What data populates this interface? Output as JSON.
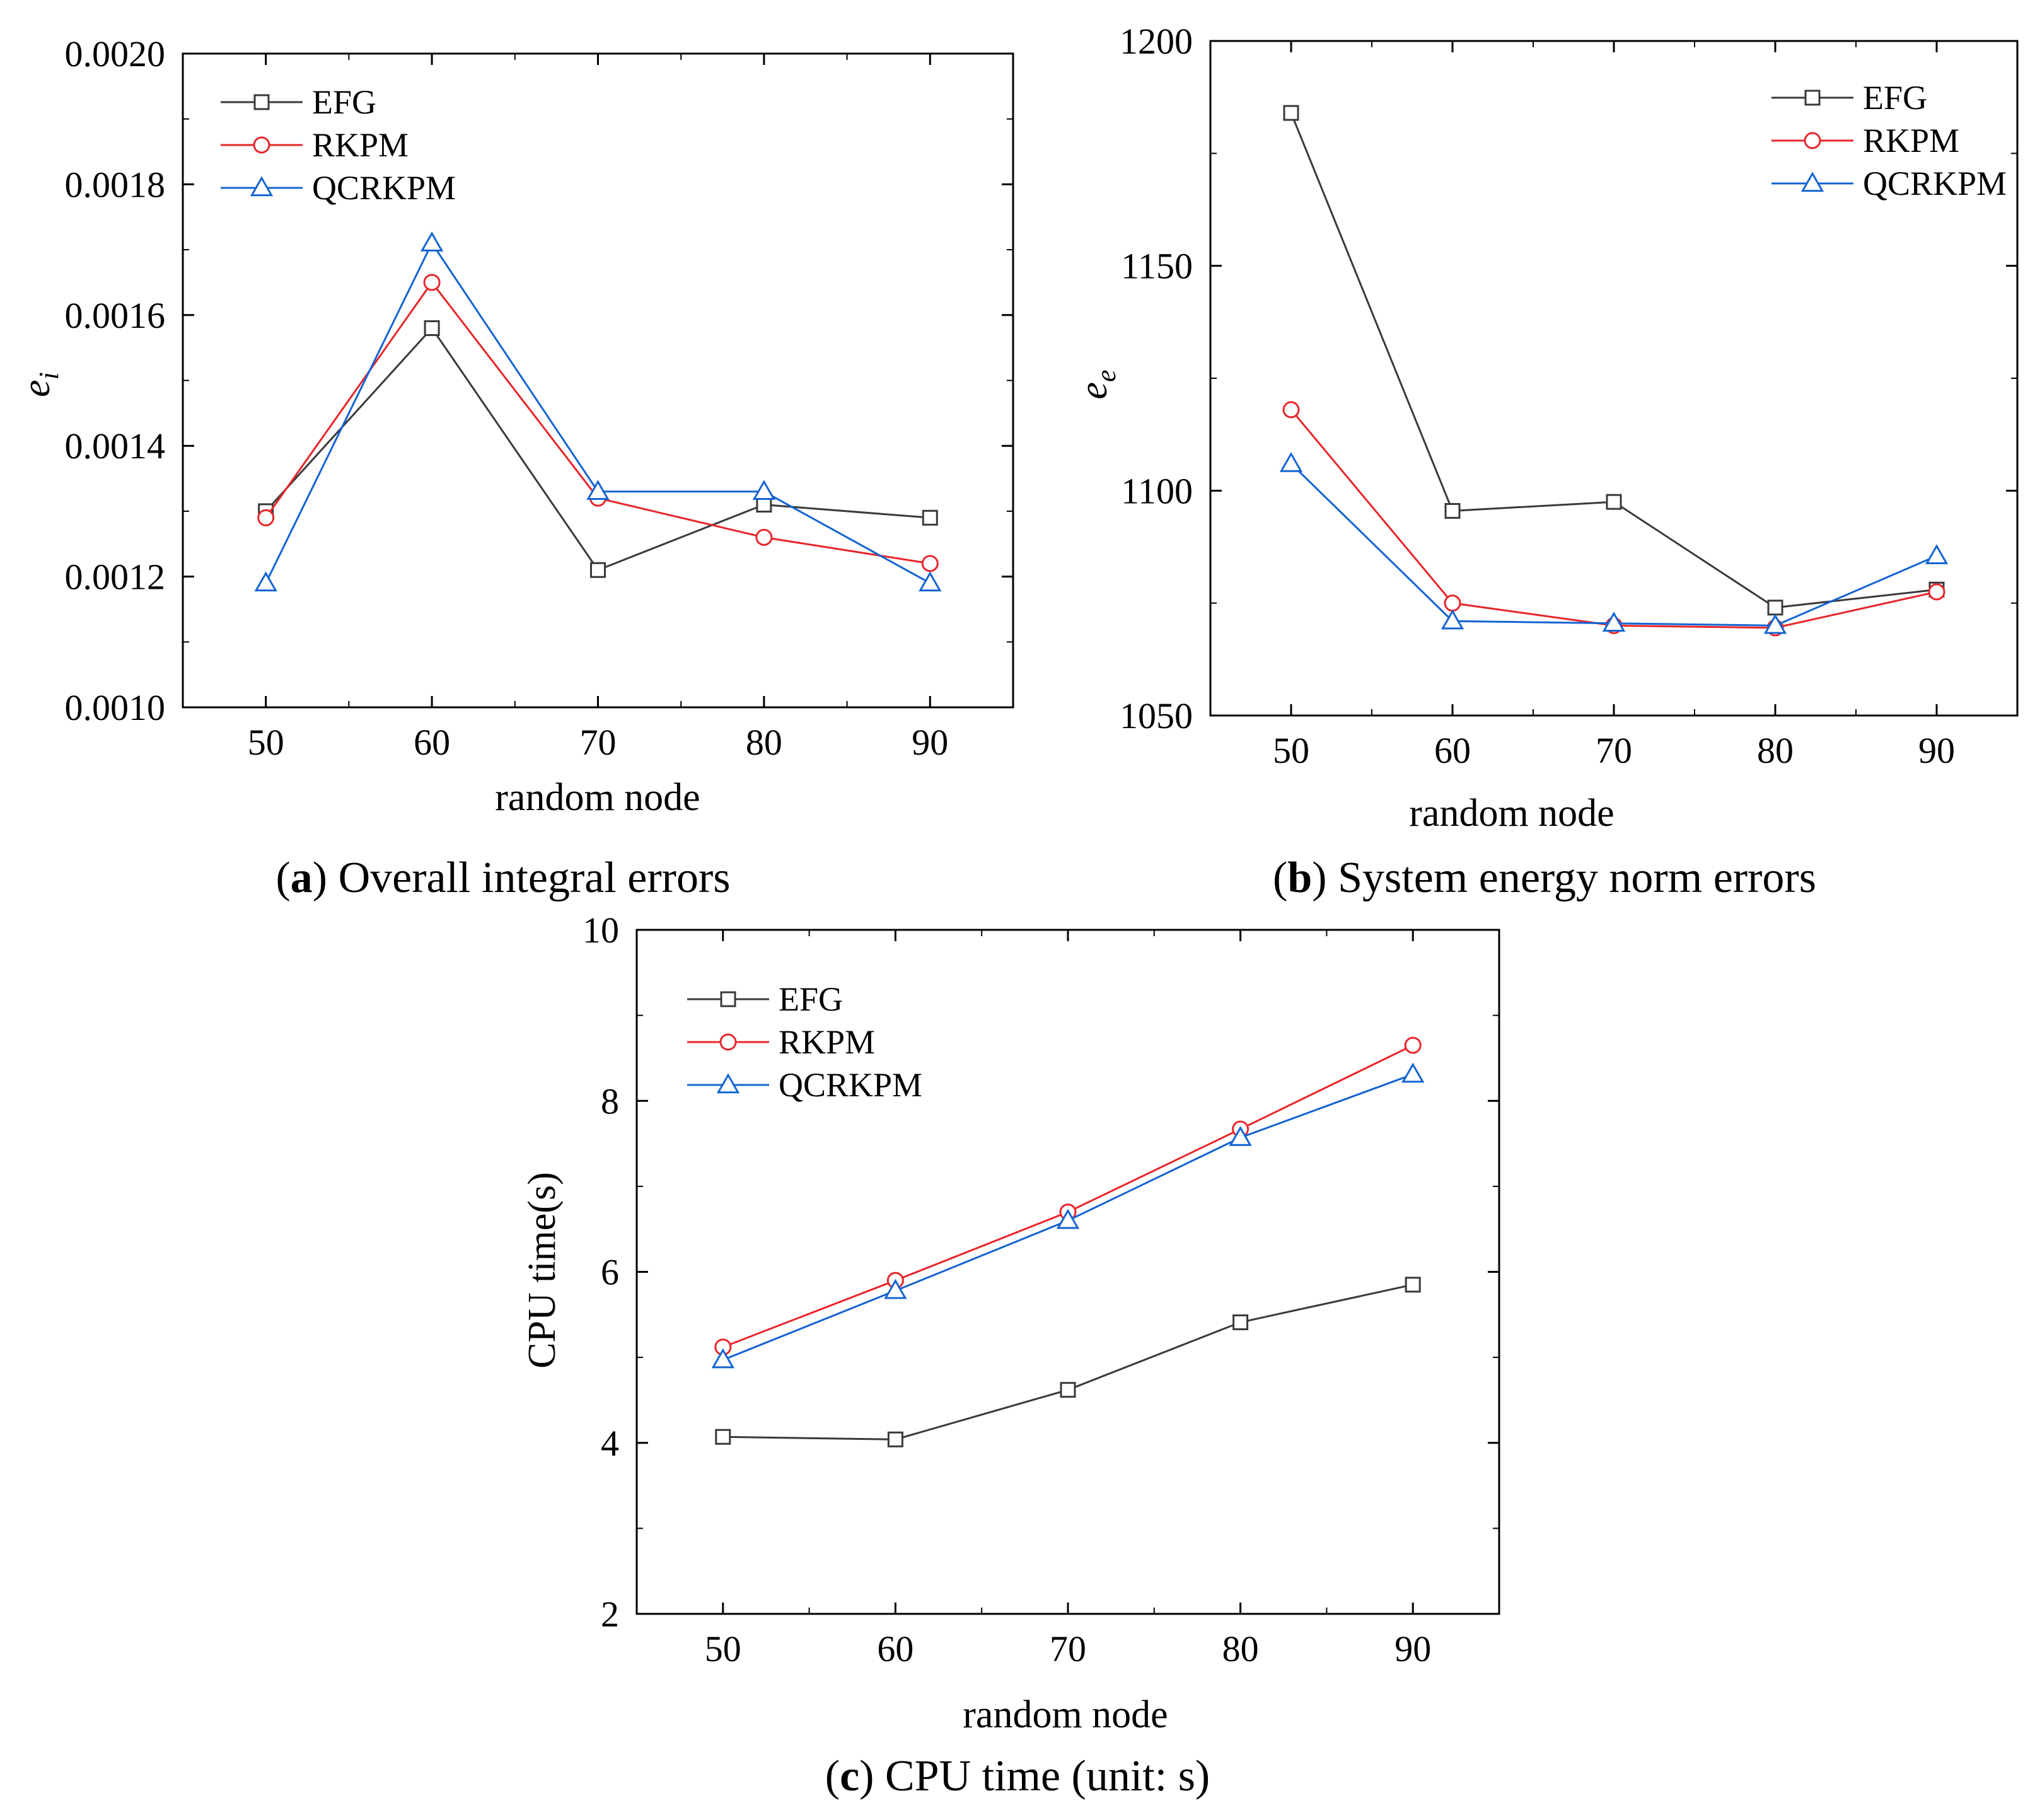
{
  "figure": {
    "captions": [
      {
        "letter": "a",
        "text": "Overall integral errors"
      },
      {
        "letter": "b",
        "text": "System energy norm errors"
      },
      {
        "letter": "c",
        "text": "CPU time (unit: s)"
      }
    ]
  },
  "colors": {
    "EFG": "#3a3a3a",
    "RKPM": "#e8262a",
    "QCRKPM": "#1464d2"
  },
  "chart_data": [
    {
      "id": "a",
      "type": "line",
      "title": "",
      "xlabel": "random node",
      "ylabel_main": "e",
      "ylabel_sub": "i",
      "categories": [
        50,
        60,
        70,
        80,
        90
      ],
      "xlim": [
        45,
        95
      ],
      "ylim": [
        0.001,
        0.002
      ],
      "yticks": [
        "0.0010",
        "0.0012",
        "0.0014",
        "0.0016",
        "0.0018",
        "0.0020"
      ],
      "ytick_values": [
        0.001,
        0.0012,
        0.0014,
        0.0016,
        0.0018,
        0.002
      ],
      "legend_position": "top-left",
      "series": [
        {
          "name": "EFG",
          "marker": "square",
          "values": [
            0.0013,
            0.00158,
            0.00121,
            0.00131,
            0.00129
          ]
        },
        {
          "name": "RKPM",
          "marker": "circle",
          "values": [
            0.00129,
            0.00165,
            0.00132,
            0.00126,
            0.00122
          ]
        },
        {
          "name": "QCRKPM",
          "marker": "triangle",
          "values": [
            0.00119,
            0.00171,
            0.00133,
            0.00133,
            0.00119
          ]
        }
      ]
    },
    {
      "id": "b",
      "type": "line",
      "title": "",
      "xlabel": "random node",
      "ylabel_main": "e",
      "ylabel_sub": "e",
      "categories": [
        50,
        60,
        70,
        80,
        90
      ],
      "xlim": [
        45,
        95
      ],
      "ylim": [
        1050,
        1200
      ],
      "yticks": [
        "1050",
        "1100",
        "1150",
        "1200"
      ],
      "ytick_values": [
        1050,
        1100,
        1150,
        1200
      ],
      "legend_position": "top-right",
      "series": [
        {
          "name": "EFG",
          "marker": "square",
          "values": [
            1184,
            1095.5,
            1097.5,
            1074,
            1078
          ]
        },
        {
          "name": "RKPM",
          "marker": "circle",
          "values": [
            1118,
            1075,
            1070,
            1069.5,
            1077.5
          ]
        },
        {
          "name": "QCRKPM",
          "marker": "triangle",
          "values": [
            1106,
            1071,
            1070.5,
            1070,
            1085.5
          ]
        }
      ]
    },
    {
      "id": "c",
      "type": "line",
      "title": "",
      "xlabel": "random node",
      "ylabel_main": "CPU time(s)",
      "ylabel_sub": "",
      "categories": [
        50,
        60,
        70,
        80,
        90
      ],
      "xlim": [
        45,
        95
      ],
      "ylim": [
        2,
        10
      ],
      "yticks": [
        "2",
        "4",
        "6",
        "8",
        "10"
      ],
      "ytick_values": [
        2,
        4,
        6,
        8,
        10
      ],
      "legend_position": "top-left",
      "series": [
        {
          "name": "EFG",
          "marker": "square",
          "values": [
            4.07,
            4.04,
            4.62,
            5.41,
            5.85
          ]
        },
        {
          "name": "RKPM",
          "marker": "circle",
          "values": [
            5.12,
            5.9,
            6.7,
            7.67,
            8.65
          ]
        },
        {
          "name": "QCRKPM",
          "marker": "triangle",
          "values": [
            4.97,
            5.78,
            6.6,
            7.57,
            8.31
          ]
        }
      ]
    }
  ]
}
